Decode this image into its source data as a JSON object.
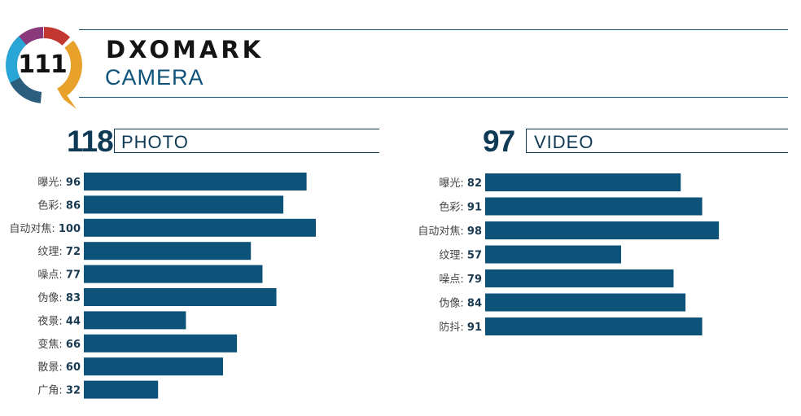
{
  "overall": {
    "score": "111"
  },
  "brand": {
    "name": "DXOMARK",
    "subtitle": "CAMERA"
  },
  "colors": {
    "bar": "#0d5278",
    "heading": "#0f3a55",
    "ring": [
      "#e8a12a",
      "#2aa6d6",
      "#2a5e7c",
      "#8a3a7a",
      "#c2372f"
    ]
  },
  "photo": {
    "score": "118",
    "label": "PHOTO"
  },
  "video": {
    "score": "97",
    "label": "VIDEO"
  },
  "chart_data": [
    {
      "type": "bar",
      "orientation": "horizontal",
      "title": "PHOTO",
      "categories": [
        "曝光",
        "色彩",
        "自动对焦",
        "纹理",
        "噪点",
        "伪像",
        "夜景",
        "变焦",
        "散景",
        "广角"
      ],
      "values": [
        96,
        86,
        100,
        72,
        77,
        83,
        44,
        66,
        60,
        32
      ]
    },
    {
      "type": "bar",
      "orientation": "horizontal",
      "title": "VIDEO",
      "categories": [
        "曝光",
        "色彩",
        "自动对焦",
        "纹理",
        "噪点",
        "伪像",
        "防抖"
      ],
      "values": [
        82,
        91,
        98,
        57,
        79,
        84,
        91
      ]
    }
  ]
}
